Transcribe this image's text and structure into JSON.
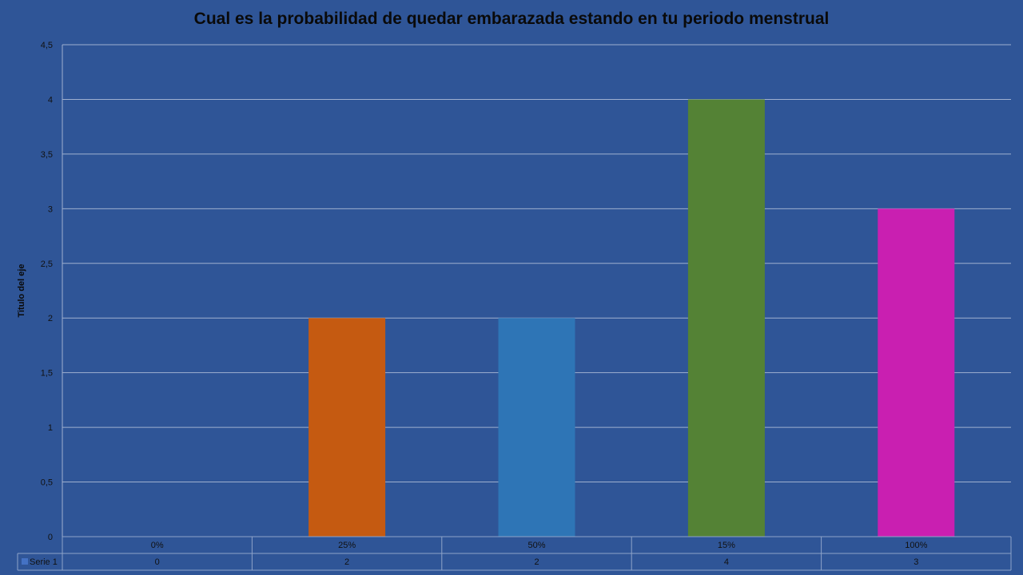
{
  "chart_data": {
    "type": "bar",
    "title": "Cual es la probabilidad de quedar embarazada estando en tu periodo menstrual",
    "xlabel": "",
    "ylabel": "Titulo del eje",
    "categories": [
      "0%",
      "25%",
      "50%",
      "15%",
      "100%"
    ],
    "series": [
      {
        "name": "Serie 1",
        "values": [
          0,
          2,
          2,
          4,
          3
        ],
        "value_labels": [
          "0",
          "2",
          "2",
          "4",
          "3"
        ],
        "colors": [
          "#2f5597",
          "#c55a11",
          "#2e75b6",
          "#548235",
          "#c91fb1"
        ]
      }
    ],
    "ylim": [
      0,
      4.5
    ],
    "yticks": [
      0,
      0.5,
      1,
      1.5,
      2,
      2.5,
      3,
      3.5,
      4,
      4.5
    ],
    "ytick_labels": [
      "0",
      "0,5",
      "1",
      "1,5",
      "2",
      "2,5",
      "3",
      "3,5",
      "4",
      "4,5"
    ],
    "grid": true,
    "legend": "data-table",
    "legend_key_color": "#4472c4"
  }
}
